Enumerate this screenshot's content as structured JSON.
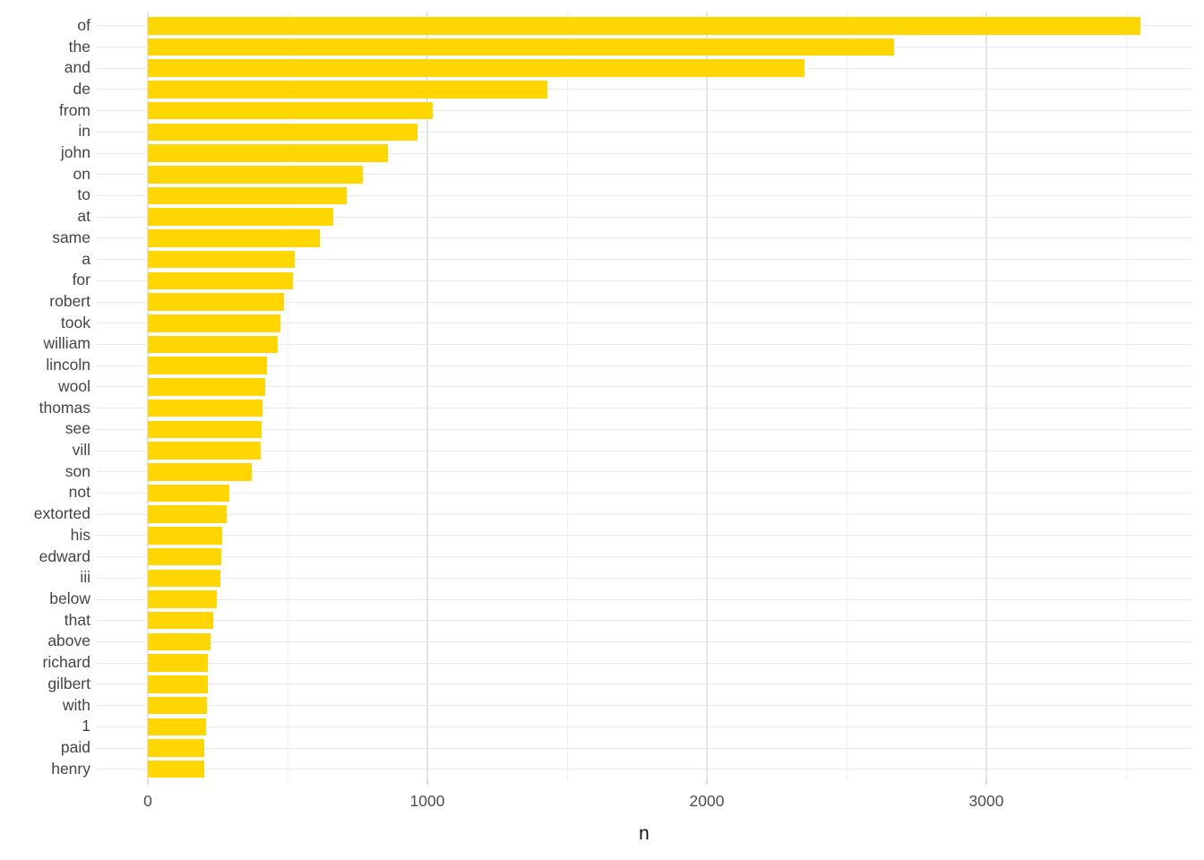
{
  "chart_data": {
    "type": "bar",
    "orientation": "horizontal",
    "title": "",
    "xlabel": "n",
    "ylabel": "",
    "categories": [
      "of",
      "the",
      "and",
      "de",
      "from",
      "in",
      "john",
      "on",
      "to",
      "at",
      "same",
      "a",
      "for",
      "robert",
      "took",
      "william",
      "lincoln",
      "wool",
      "thomas",
      "see",
      "vill",
      "son",
      "not",
      "extorted",
      "his",
      "edward",
      "iii",
      "below",
      "that",
      "above",
      "richard",
      "gilbert",
      "with",
      "1",
      "paid",
      "henry"
    ],
    "values": [
      3550,
      2670,
      2350,
      1430,
      1020,
      965,
      860,
      770,
      710,
      665,
      615,
      525,
      520,
      487,
      474,
      465,
      426,
      420,
      411,
      408,
      404,
      372,
      292,
      282,
      266,
      263,
      260,
      247,
      234,
      224,
      215,
      215,
      212,
      208,
      203,
      202
    ],
    "x_major_ticks": [
      0,
      1000,
      2000,
      3000
    ],
    "x_major_tick_labels": [
      "0",
      "1000",
      "2000",
      "3000"
    ],
    "x_minor_ticks": [
      500,
      1500,
      2500,
      3500
    ],
    "xlim": [
      0,
      3734
    ],
    "grid": "on",
    "legend": "none",
    "bar_color": "#FFD600",
    "background_color": "#ffffff",
    "gridline_color": "#e9e9e9",
    "axis_text_color": "#4d4d4d",
    "label_text_color": "#444444"
  }
}
